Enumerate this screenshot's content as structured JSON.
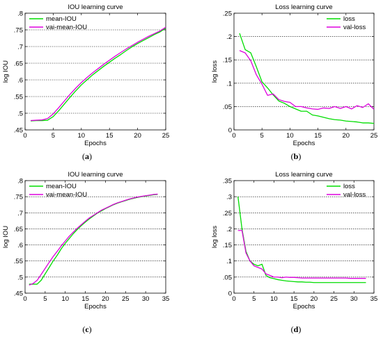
{
  "chart_data": [
    {
      "type": "line",
      "panel_label": "a",
      "title": "IOU learning curve",
      "xlabel": "Epochs",
      "ylabel": "log IOU",
      "xlim": [
        0,
        25
      ],
      "ylim": [
        0.45,
        0.8
      ],
      "xticks": [
        0,
        5,
        10,
        15,
        20,
        25
      ],
      "yticks": [
        0.45,
        0.5,
        0.55,
        0.6,
        0.65,
        0.7,
        0.75,
        0.8
      ],
      "grid": "horizontal dashed",
      "legend_position": "top-left",
      "series": [
        {
          "name": "mean-IOU",
          "color": "#00dd00",
          "x": [
            1,
            2,
            3,
            4,
            5,
            6,
            7,
            8,
            9,
            10,
            11,
            12,
            13,
            14,
            15,
            16,
            17,
            18,
            19,
            20,
            21,
            22,
            23,
            24,
            25
          ],
          "y": [
            0.477,
            0.478,
            0.478,
            0.479,
            0.49,
            0.508,
            0.528,
            0.548,
            0.567,
            0.585,
            0.6,
            0.615,
            0.628,
            0.641,
            0.653,
            0.665,
            0.676,
            0.688,
            0.699,
            0.709,
            0.718,
            0.727,
            0.736,
            0.744,
            0.755
          ]
        },
        {
          "name": "vai-mean-IOU",
          "color": "#dd00dd",
          "x": [
            1,
            2,
            3,
            4,
            5,
            6,
            7,
            8,
            9,
            10,
            11,
            12,
            13,
            14,
            15,
            16,
            17,
            18,
            19,
            20,
            21,
            22,
            23,
            24,
            25
          ],
          "y": [
            0.478,
            0.479,
            0.48,
            0.484,
            0.498,
            0.517,
            0.537,
            0.557,
            0.575,
            0.592,
            0.607,
            0.621,
            0.634,
            0.647,
            0.659,
            0.671,
            0.682,
            0.693,
            0.703,
            0.713,
            0.722,
            0.731,
            0.739,
            0.747,
            0.758
          ]
        }
      ]
    },
    {
      "type": "line",
      "panel_label": "b",
      "title": "Loss learning curve",
      "xlabel": "Epochs",
      "ylabel": "log loss",
      "xlim": [
        0,
        25
      ],
      "ylim": [
        0,
        0.25
      ],
      "xticks": [
        0,
        5,
        10,
        15,
        20,
        25
      ],
      "yticks": [
        0,
        0.05,
        0.1,
        0.15,
        0.2,
        0.25
      ],
      "grid": "horizontal dashed",
      "legend_position": "top-right",
      "series": [
        {
          "name": "loss",
          "color": "#00dd00",
          "x": [
            1,
            2,
            3,
            4,
            5,
            6,
            7,
            8,
            9,
            10,
            11,
            12,
            13,
            14,
            15,
            16,
            17,
            18,
            19,
            20,
            21,
            22,
            23,
            24,
            25
          ],
          "y": [
            0.207,
            0.172,
            0.165,
            0.135,
            0.103,
            0.09,
            0.075,
            0.062,
            0.057,
            0.05,
            0.045,
            0.04,
            0.04,
            0.032,
            0.03,
            0.027,
            0.024,
            0.022,
            0.021,
            0.019,
            0.018,
            0.017,
            0.015,
            0.015,
            0.014
          ]
        },
        {
          "name": "val-loss",
          "color": "#dd00dd",
          "x": [
            1,
            2,
            3,
            4,
            5,
            6,
            7,
            8,
            9,
            10,
            11,
            12,
            13,
            14,
            15,
            16,
            17,
            18,
            19,
            20,
            21,
            22,
            23,
            24,
            25
          ],
          "y": [
            0.17,
            0.165,
            0.148,
            0.118,
            0.098,
            0.074,
            0.077,
            0.065,
            0.061,
            0.059,
            0.05,
            0.05,
            0.047,
            0.045,
            0.044,
            0.047,
            0.046,
            0.05,
            0.046,
            0.05,
            0.045,
            0.052,
            0.048,
            0.056,
            0.044
          ]
        }
      ]
    },
    {
      "type": "line",
      "panel_label": "c",
      "title": "IOU learning curve",
      "xlabel": "Epochs",
      "ylabel": "log IOU",
      "xlim": [
        0,
        35
      ],
      "ylim": [
        0.45,
        0.8
      ],
      "xticks": [
        0,
        5,
        10,
        15,
        20,
        25,
        30,
        35
      ],
      "yticks": [
        0.45,
        0.5,
        0.55,
        0.6,
        0.65,
        0.7,
        0.75,
        0.8
      ],
      "grid": "horizontal dashed",
      "legend_position": "top-left",
      "series": [
        {
          "name": "mean-IOU",
          "color": "#00dd00",
          "x": [
            1,
            2,
            3,
            4,
            5,
            6,
            7,
            8,
            9,
            10,
            11,
            12,
            13,
            14,
            15,
            16,
            17,
            18,
            19,
            20,
            21,
            22,
            23,
            24,
            25,
            26,
            27,
            28,
            29,
            30,
            31,
            32,
            33
          ],
          "y": [
            0.478,
            0.478,
            0.478,
            0.49,
            0.51,
            0.53,
            0.55,
            0.568,
            0.588,
            0.605,
            0.62,
            0.635,
            0.648,
            0.66,
            0.671,
            0.681,
            0.69,
            0.699,
            0.706,
            0.713,
            0.719,
            0.725,
            0.73,
            0.734,
            0.738,
            0.742,
            0.745,
            0.748,
            0.75,
            0.752,
            0.754,
            0.756,
            0.757
          ]
        },
        {
          "name": "vai-mean-IOU",
          "color": "#dd00dd",
          "x": [
            1,
            2,
            3,
            4,
            5,
            6,
            7,
            8,
            9,
            10,
            11,
            12,
            13,
            14,
            15,
            16,
            17,
            18,
            19,
            20,
            21,
            22,
            23,
            24,
            25,
            26,
            27,
            28,
            29,
            30,
            31,
            32,
            33
          ],
          "y": [
            0.475,
            0.48,
            0.49,
            0.508,
            0.527,
            0.546,
            0.564,
            0.58,
            0.597,
            0.612,
            0.627,
            0.64,
            0.652,
            0.663,
            0.674,
            0.684,
            0.692,
            0.7,
            0.708,
            0.714,
            0.72,
            0.726,
            0.731,
            0.735,
            0.739,
            0.743,
            0.746,
            0.749,
            0.751,
            0.753,
            0.755,
            0.757,
            0.758
          ]
        }
      ]
    },
    {
      "type": "line",
      "panel_label": "d",
      "title": "Loss learning curve",
      "xlabel": "Epochs",
      "ylabel": "log loss",
      "xlim": [
        0,
        35
      ],
      "ylim": [
        0,
        0.35
      ],
      "xticks": [
        0,
        5,
        10,
        15,
        20,
        25,
        30,
        35
      ],
      "yticks": [
        0,
        0.05,
        0.1,
        0.15,
        0.2,
        0.25,
        0.3,
        0.35
      ],
      "grid": "horizontal dashed",
      "legend_position": "top-right",
      "series": [
        {
          "name": "loss",
          "color": "#00dd00",
          "x": [
            1,
            2,
            3,
            4,
            5,
            6,
            7,
            8,
            9,
            10,
            11,
            12,
            13,
            14,
            15,
            16,
            17,
            18,
            19,
            20,
            21,
            22,
            23,
            24,
            25,
            26,
            27,
            28,
            29,
            30,
            31,
            32,
            33
          ],
          "y": [
            0.3,
            0.2,
            0.13,
            0.1,
            0.09,
            0.085,
            0.09,
            0.055,
            0.048,
            0.045,
            0.042,
            0.04,
            0.038,
            0.037,
            0.036,
            0.035,
            0.035,
            0.034,
            0.034,
            0.033,
            0.033,
            0.033,
            0.033,
            0.033,
            0.033,
            0.033,
            0.033,
            0.033,
            0.033,
            0.033,
            0.033,
            0.033,
            0.033
          ]
        },
        {
          "name": "val-loss",
          "color": "#dd00dd",
          "x": [
            1,
            2,
            3,
            4,
            5,
            6,
            7,
            8,
            9,
            10,
            11,
            12,
            13,
            14,
            15,
            16,
            17,
            18,
            19,
            20,
            21,
            22,
            23,
            24,
            25,
            26,
            27,
            28,
            29,
            30,
            31,
            32,
            33
          ],
          "y": [
            0.195,
            0.195,
            0.125,
            0.1,
            0.085,
            0.08,
            0.075,
            0.06,
            0.055,
            0.05,
            0.05,
            0.048,
            0.05,
            0.049,
            0.049,
            0.048,
            0.047,
            0.047,
            0.047,
            0.047,
            0.047,
            0.047,
            0.047,
            0.047,
            0.047,
            0.047,
            0.047,
            0.047,
            0.046,
            0.046,
            0.046,
            0.046,
            0.046
          ]
        }
      ]
    }
  ]
}
